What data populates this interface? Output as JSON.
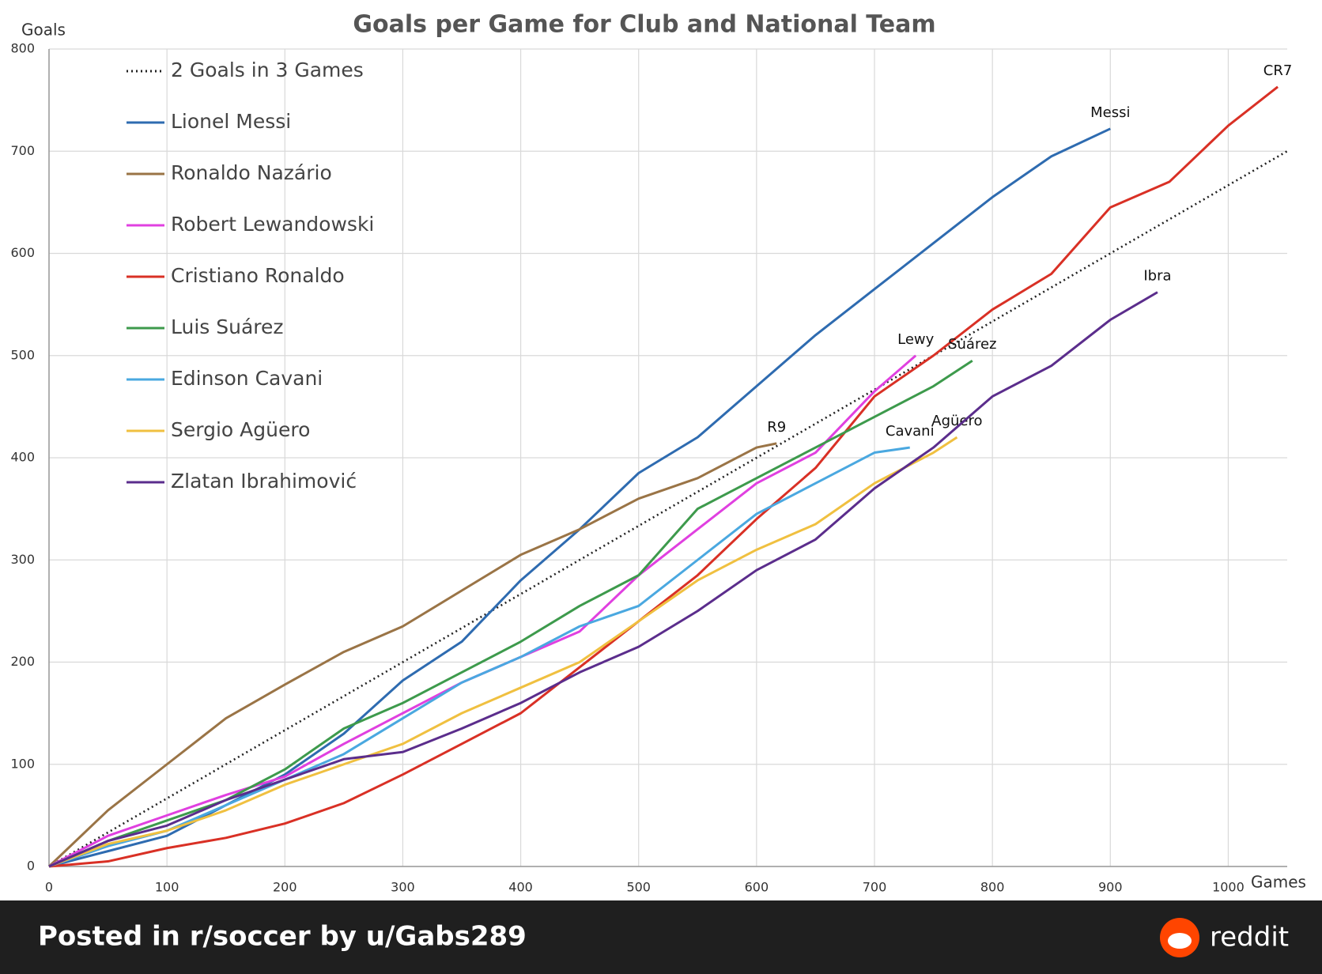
{
  "chart_data": {
    "type": "line",
    "title": "Goals per Game for Club and National Team",
    "y_label": "Goals",
    "x_label": "Games",
    "xlim": [
      0,
      1050
    ],
    "ylim": [
      0,
      800
    ],
    "xticks": [
      0,
      100,
      200,
      300,
      400,
      500,
      600,
      700,
      800,
      900,
      1000
    ],
    "yticks": [
      0,
      100,
      200,
      300,
      400,
      500,
      600,
      700,
      800
    ],
    "grid": true,
    "legend": "upper left",
    "series": [
      {
        "name": "2 Goals in 3 Games",
        "color": "#222222",
        "style": "dotted",
        "x": [
          0,
          1050
        ],
        "values": [
          0,
          700
        ]
      },
      {
        "name": "Lionel Messi",
        "end_label": "Messi",
        "color": "#2e6bb0",
        "x": [
          0,
          50,
          100,
          150,
          200,
          250,
          300,
          350,
          400,
          450,
          500,
          550,
          600,
          650,
          700,
          750,
          800,
          850,
          900
        ],
        "values": [
          0,
          15,
          30,
          60,
          90,
          130,
          182,
          220,
          280,
          330,
          385,
          420,
          470,
          520,
          565,
          610,
          655,
          695,
          722
        ]
      },
      {
        "name": "Ronaldo Nazário",
        "end_label": "R9",
        "color": "#9a7446",
        "x": [
          0,
          50,
          100,
          150,
          200,
          250,
          300,
          350,
          400,
          450,
          500,
          550,
          600,
          617
        ],
        "values": [
          0,
          55,
          100,
          145,
          178,
          210,
          235,
          270,
          305,
          330,
          360,
          380,
          410,
          414
        ]
      },
      {
        "name": "Robert Lewandowski",
        "end_label": "Lewy",
        "color": "#e040e0",
        "x": [
          0,
          50,
          100,
          150,
          200,
          250,
          300,
          350,
          400,
          450,
          500,
          550,
          600,
          650,
          700,
          735
        ],
        "values": [
          0,
          30,
          50,
          70,
          88,
          120,
          150,
          180,
          205,
          230,
          285,
          330,
          375,
          405,
          465,
          500
        ]
      },
      {
        "name": "Cristiano Ronaldo",
        "end_label": "CR7",
        "color": "#d93025",
        "x": [
          0,
          50,
          100,
          150,
          200,
          250,
          300,
          350,
          400,
          450,
          500,
          550,
          600,
          650,
          700,
          750,
          800,
          850,
          900,
          950,
          1000,
          1042
        ],
        "values": [
          0,
          5,
          18,
          28,
          42,
          62,
          90,
          120,
          150,
          195,
          240,
          285,
          340,
          390,
          460,
          500,
          545,
          580,
          645,
          670,
          725,
          763
        ]
      },
      {
        "name": "Luis Suárez",
        "end_label": "Suárez",
        "color": "#3d9a4c",
        "x": [
          0,
          50,
          100,
          150,
          200,
          250,
          300,
          350,
          400,
          450,
          500,
          550,
          600,
          650,
          700,
          750,
          783
        ],
        "values": [
          0,
          25,
          45,
          65,
          95,
          135,
          160,
          190,
          220,
          255,
          285,
          350,
          380,
          410,
          440,
          470,
          495
        ]
      },
      {
        "name": "Edinson Cavani",
        "end_label": "Cavani",
        "color": "#4aa8e0",
        "x": [
          0,
          50,
          100,
          150,
          200,
          250,
          300,
          350,
          400,
          450,
          500,
          550,
          600,
          650,
          700,
          730
        ],
        "values": [
          0,
          20,
          35,
          60,
          85,
          110,
          145,
          180,
          205,
          235,
          255,
          300,
          345,
          375,
          405,
          410
        ]
      },
      {
        "name": "Sergio Agüero",
        "end_label": "Agüero",
        "color": "#f0c040",
        "x": [
          0,
          50,
          100,
          150,
          200,
          250,
          300,
          350,
          400,
          450,
          500,
          550,
          600,
          650,
          700,
          750,
          770
        ],
        "values": [
          0,
          22,
          35,
          55,
          80,
          100,
          120,
          150,
          175,
          200,
          240,
          280,
          310,
          335,
          375,
          405,
          420
        ]
      },
      {
        "name": "Zlatan Ibrahimović",
        "end_label": "Ibra",
        "color": "#5b2d8c",
        "x": [
          0,
          50,
          100,
          150,
          200,
          250,
          300,
          350,
          400,
          450,
          500,
          550,
          600,
          650,
          700,
          750,
          800,
          850,
          900,
          940
        ],
        "values": [
          0,
          25,
          40,
          65,
          85,
          105,
          112,
          135,
          160,
          190,
          215,
          250,
          290,
          320,
          370,
          410,
          460,
          490,
          535,
          562
        ]
      }
    ]
  },
  "footer": {
    "text": "Posted in r/soccer by u/Gabs289",
    "brand": "reddit"
  }
}
